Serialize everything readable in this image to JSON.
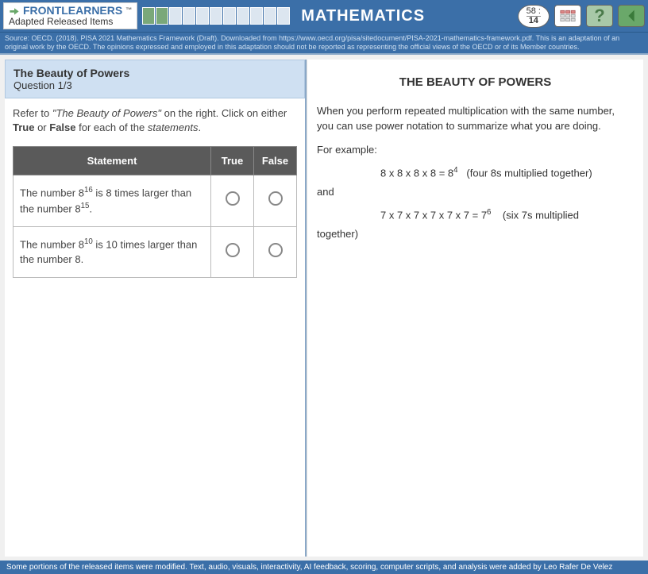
{
  "header": {
    "brand_top": "FRONTLEARNERS",
    "brand_tm": "™",
    "brand_bottom": "Adapted Released Items",
    "subject": "MATHEMATICS",
    "timer_top": "58 :",
    "timer_bottom": "14",
    "help_label": "?",
    "progress_total": 11,
    "progress_filled": 2
  },
  "source_line": "Source: OECD. (2018). PISA 2021 Mathematics Framework (Draft). Downloaded from https://www.oecd.org/pisa/sitedocument/PISA-2021-mathematics-framework.pdf. This is an adaptation of an original work by the OECD. The opinions expressed and employed in this adaptation should not be reported as representing the official views of the OECD or of its Member countries.",
  "question": {
    "title": "The Beauty of Powers",
    "counter": "Question 1/3",
    "instructions_html": "Refer to <em>\"The Beauty of Powers\"</em> on the right. Click on either <b>True</b> or <b>False</b> for each of the <em>statements</em>.",
    "col_statement": "Statement",
    "col_true": "True",
    "col_false": "False",
    "rows": [
      {
        "text_html": "The number 8<sup>16</sup> is 8 times larger than the number 8<sup>15</sup>."
      },
      {
        "text_html": "The number 8<sup>10</sup> is 10 times larger than the number 8."
      }
    ]
  },
  "passage": {
    "heading": "THE BEAUTY OF POWERS",
    "p1": "When you perform repeated multiplication with the same number, you can use power notation to summarize what you are doing.",
    "for_example": "For example:",
    "eq1_html": "8 x 8 x 8 x 8 = 8<sup>4</sup> &nbsp;&nbsp;(four 8s multiplied together)",
    "and": "and",
    "eq2_html": "7 x 7 x 7 x 7 x 7 x 7 = 7<sup>6</sup> &nbsp;&nbsp;&nbsp;(six 7s multiplied",
    "together": "together)"
  },
  "footer": "Some portions of the released items were modified. Text, audio, visuals, interactivity, AI feedback, scoring, computer scripts, and analysis were added by Leo Rafer De Velez",
  "colors": {
    "primary": "#3b6fa8",
    "header_bg": "#cfe0f2",
    "table_header": "#5a5a5a",
    "progress_fill": "#7aa87a"
  }
}
